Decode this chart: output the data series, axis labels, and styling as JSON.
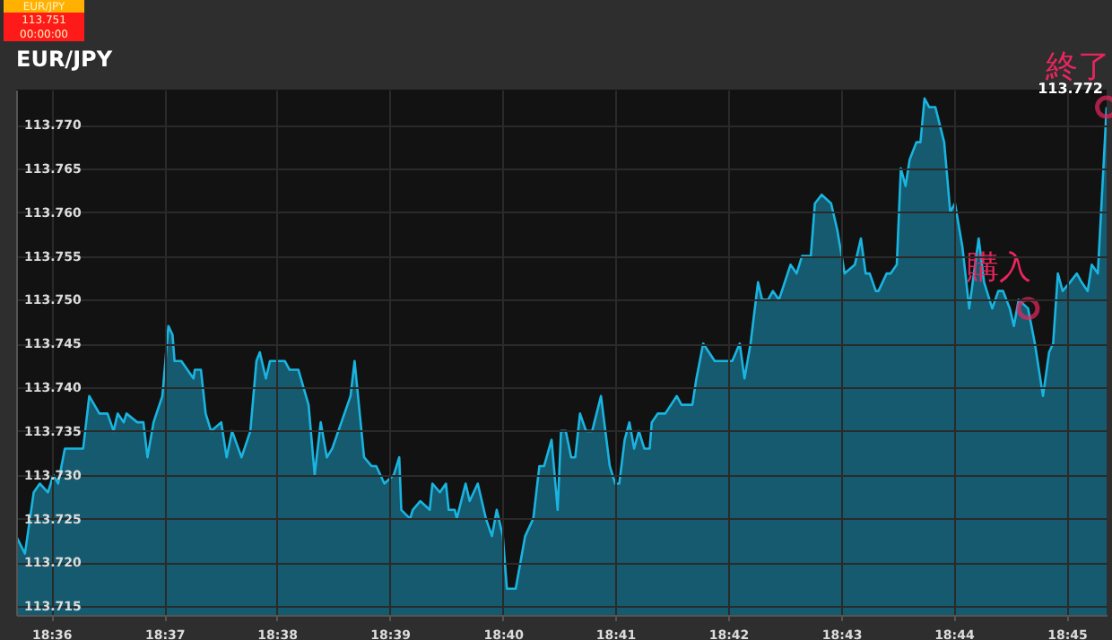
{
  "chart_data": {
    "type": "area",
    "title": "EUR/JPY",
    "x": [
      18.5948,
      18.5961,
      18.5974,
      18.5983,
      18.5995,
      18.6003,
      18.601,
      18.602,
      18.6047,
      18.6056,
      18.6071,
      18.6083,
      18.6092,
      18.6098,
      18.6107,
      18.6111,
      18.6127,
      18.6136,
      18.6142,
      18.6151,
      18.6164,
      18.6173,
      18.6179,
      18.6182,
      18.6192,
      18.621,
      18.6212,
      18.6221,
      18.6228,
      18.6236,
      18.6251,
      18.6259,
      18.6267,
      18.6281,
      18.6294,
      18.6303,
      18.6308,
      18.6317,
      18.6323,
      18.6345,
      18.6352,
      18.6365,
      18.638,
      18.6389,
      18.6398,
      18.6407,
      18.6415,
      18.6442,
      18.6448,
      18.6462,
      18.6473,
      18.648,
      18.6492,
      18.6506,
      18.6514,
      18.6517,
      18.653,
      18.6534,
      18.6545,
      18.6559,
      18.6563,
      18.6574,
      18.6583,
      18.6587,
      18.6596,
      18.6599,
      18.6612,
      18.6618,
      18.663,
      18.6642,
      18.6651,
      18.6658,
      18.6667,
      18.6673,
      18.6686,
      18.67,
      18.6712,
      18.6721,
      18.6728,
      18.6739,
      18.6748,
      18.6753,
      18.676,
      18.6768,
      18.6774,
      18.6781,
      18.679,
      18.6799,
      18.6812,
      18.6825,
      18.6833,
      18.6839,
      18.6847,
      18.6854,
      18.6861,
      18.6868,
      18.6876,
      18.6884,
      18.6887,
      18.6896,
      18.6907,
      18.6924,
      18.6931,
      18.6947,
      18.6953,
      18.6963,
      18.698,
      18.6984,
      18.7006,
      18.7017,
      18.7024,
      18.7033,
      18.7044,
      18.705,
      18.7059,
      18.7066,
      18.7075,
      18.7092,
      18.7101,
      18.7109,
      18.7122,
      18.7128,
      18.7138,
      18.7152,
      18.7161,
      18.7172,
      18.7187,
      18.7196,
      18.7203,
      18.7209,
      18.7218,
      18.7222,
      18.7234,
      18.724,
      18.7249,
      18.7255,
      18.7262,
      18.7268,
      18.7278,
      18.7284,
      18.729,
      18.7297,
      18.7306,
      18.7319,
      18.7328,
      18.7335,
      18.7346,
      18.7356,
      18.737,
      18.7378,
      18.739,
      18.7399,
      18.7406,
      18.7416,
      18.7422,
      18.7429,
      18.7443,
      18.7453,
      18.7465,
      18.7474,
      18.748,
      18.7487,
      18.7494,
      18.7505,
      18.7515,
      18.7522,
      18.7531,
      18.7537,
      18.7546,
      18.7559
    ],
    "series": [
      {
        "color": "#1ab4e0",
        "values": [
          113.723,
          113.721,
          113.728,
          113.729,
          113.728,
          113.73,
          113.729,
          113.733,
          113.733,
          113.739,
          113.737,
          113.737,
          113.735,
          113.737,
          113.736,
          113.737,
          113.736,
          113.736,
          113.732,
          113.736,
          113.739,
          113.747,
          113.746,
          113.743,
          113.743,
          113.741,
          113.742,
          113.742,
          113.737,
          113.735,
          113.736,
          113.732,
          113.735,
          113.732,
          113.735,
          113.743,
          113.744,
          113.741,
          113.743,
          113.743,
          113.742,
          113.742,
          113.738,
          113.73,
          113.736,
          113.732,
          113.733,
          113.739,
          113.743,
          113.732,
          113.731,
          113.731,
          113.729,
          113.73,
          113.732,
          113.726,
          113.725,
          113.726,
          113.727,
          113.726,
          113.729,
          113.728,
          113.729,
          113.726,
          113.726,
          113.725,
          113.729,
          113.727,
          113.729,
          113.725,
          113.723,
          113.726,
          113.723,
          113.717,
          113.717,
          113.723,
          113.725,
          113.731,
          113.731,
          113.734,
          113.726,
          113.735,
          113.735,
          113.732,
          113.732,
          113.737,
          113.735,
          113.735,
          113.739,
          113.731,
          113.729,
          113.729,
          113.734,
          113.736,
          113.733,
          113.735,
          113.733,
          113.733,
          113.736,
          113.737,
          113.737,
          113.739,
          113.738,
          113.738,
          113.741,
          113.745,
          113.743,
          113.743,
          113.743,
          113.745,
          113.741,
          113.745,
          113.752,
          113.75,
          113.75,
          113.751,
          113.75,
          113.754,
          113.753,
          113.755,
          113.755,
          113.761,
          113.762,
          113.761,
          113.758,
          113.753,
          113.754,
          113.757,
          113.753,
          113.753,
          113.751,
          113.751,
          113.753,
          113.753,
          113.754,
          113.765,
          113.763,
          113.766,
          113.768,
          113.768,
          113.773,
          113.772,
          113.772,
          113.768,
          113.76,
          113.761,
          113.756,
          113.749,
          113.757,
          113.752,
          113.749,
          113.751,
          113.751,
          113.749,
          113.747,
          113.75,
          113.749,
          113.745,
          113.739,
          113.744,
          113.745,
          113.753,
          113.751,
          113.752,
          113.753,
          113.752,
          113.751,
          113.754,
          113.753,
          113.772
        ],
        "value_labels": [
          null,
          null,
          null,
          null,
          null,
          null,
          null,
          null,
          null,
          null,
          null,
          null,
          null,
          null,
          null,
          null,
          null,
          null,
          null,
          null,
          null,
          null,
          null,
          null,
          null,
          null,
          null,
          null,
          null,
          null,
          null,
          null,
          null,
          null,
          null,
          null,
          null,
          null,
          null,
          null,
          null,
          null,
          null,
          null,
          null,
          null,
          null,
          null,
          null,
          null,
          null,
          null,
          null,
          null,
          null,
          null,
          null,
          null,
          null,
          null,
          null,
          null,
          null,
          null,
          null,
          null,
          null,
          null,
          null,
          null,
          null,
          null,
          null,
          null,
          null,
          null,
          null,
          null,
          null,
          null,
          null,
          null,
          null,
          null,
          null,
          null,
          null,
          null,
          null,
          null,
          null,
          null,
          null,
          null,
          null,
          null,
          null,
          null,
          null,
          null,
          null,
          null,
          null,
          null,
          null,
          null,
          null,
          null,
          null,
          null,
          null,
          null,
          null,
          null,
          null,
          null,
          null,
          null,
          null,
          null,
          null,
          null,
          null,
          null,
          null,
          null,
          null,
          null,
          null,
          null,
          null,
          null,
          null,
          null,
          null,
          null,
          null,
          null,
          null,
          null,
          null,
          null,
          null,
          null,
          null,
          null,
          null,
          null,
          null,
          null,
          null,
          null,
          null,
          null,
          null,
          null,
          null,
          null,
          null,
          null,
          null,
          null,
          null,
          null,
          null,
          null,
          null,
          null,
          null,
          "113.772"
        ]
      }
    ],
    "xlim": [
      18.5948,
      18.7559
    ],
    "ylim": [
      113.714,
      113.774
    ],
    "xticks": [
      {
        "value": 18.6,
        "label": "18:36"
      },
      {
        "value": 18.6167,
        "label": "18:37"
      },
      {
        "value": 18.6333,
        "label": "18:38"
      },
      {
        "value": 18.65,
        "label": "18:39"
      },
      {
        "value": 18.6667,
        "label": "18:40"
      },
      {
        "value": 18.6833,
        "label": "18:41"
      },
      {
        "value": 18.7,
        "label": "18:42"
      },
      {
        "value": 18.7167,
        "label": "18:43"
      },
      {
        "value": 18.7333,
        "label": "18:44"
      },
      {
        "value": 18.75,
        "label": "18:45"
      }
    ],
    "yticks": [
      113.715,
      {
        "value": 113.72,
        "label": "113.720"
      },
      113.725,
      {
        "value": 113.73,
        "label": "113.730"
      },
      113.735,
      {
        "value": 113.74,
        "label": "113.740"
      },
      113.745,
      {
        "value": 113.75,
        "label": "113.750"
      },
      113.755,
      {
        "value": 113.76,
        "label": "113.760"
      },
      113.765,
      {
        "value": 113.77,
        "label": "113.770"
      }
    ],
    "grid": true,
    "marker": "none",
    "line_style": "solid",
    "annotations": [
      "EUR/JPY",
      "113.751",
      "00:00:00",
      {
        "text": "購入",
        "x": 18.7443,
        "y": 113.749
      },
      {
        "text": "終了",
        "x": 18.7559,
        "y": 113.772
      }
    ]
  }
}
